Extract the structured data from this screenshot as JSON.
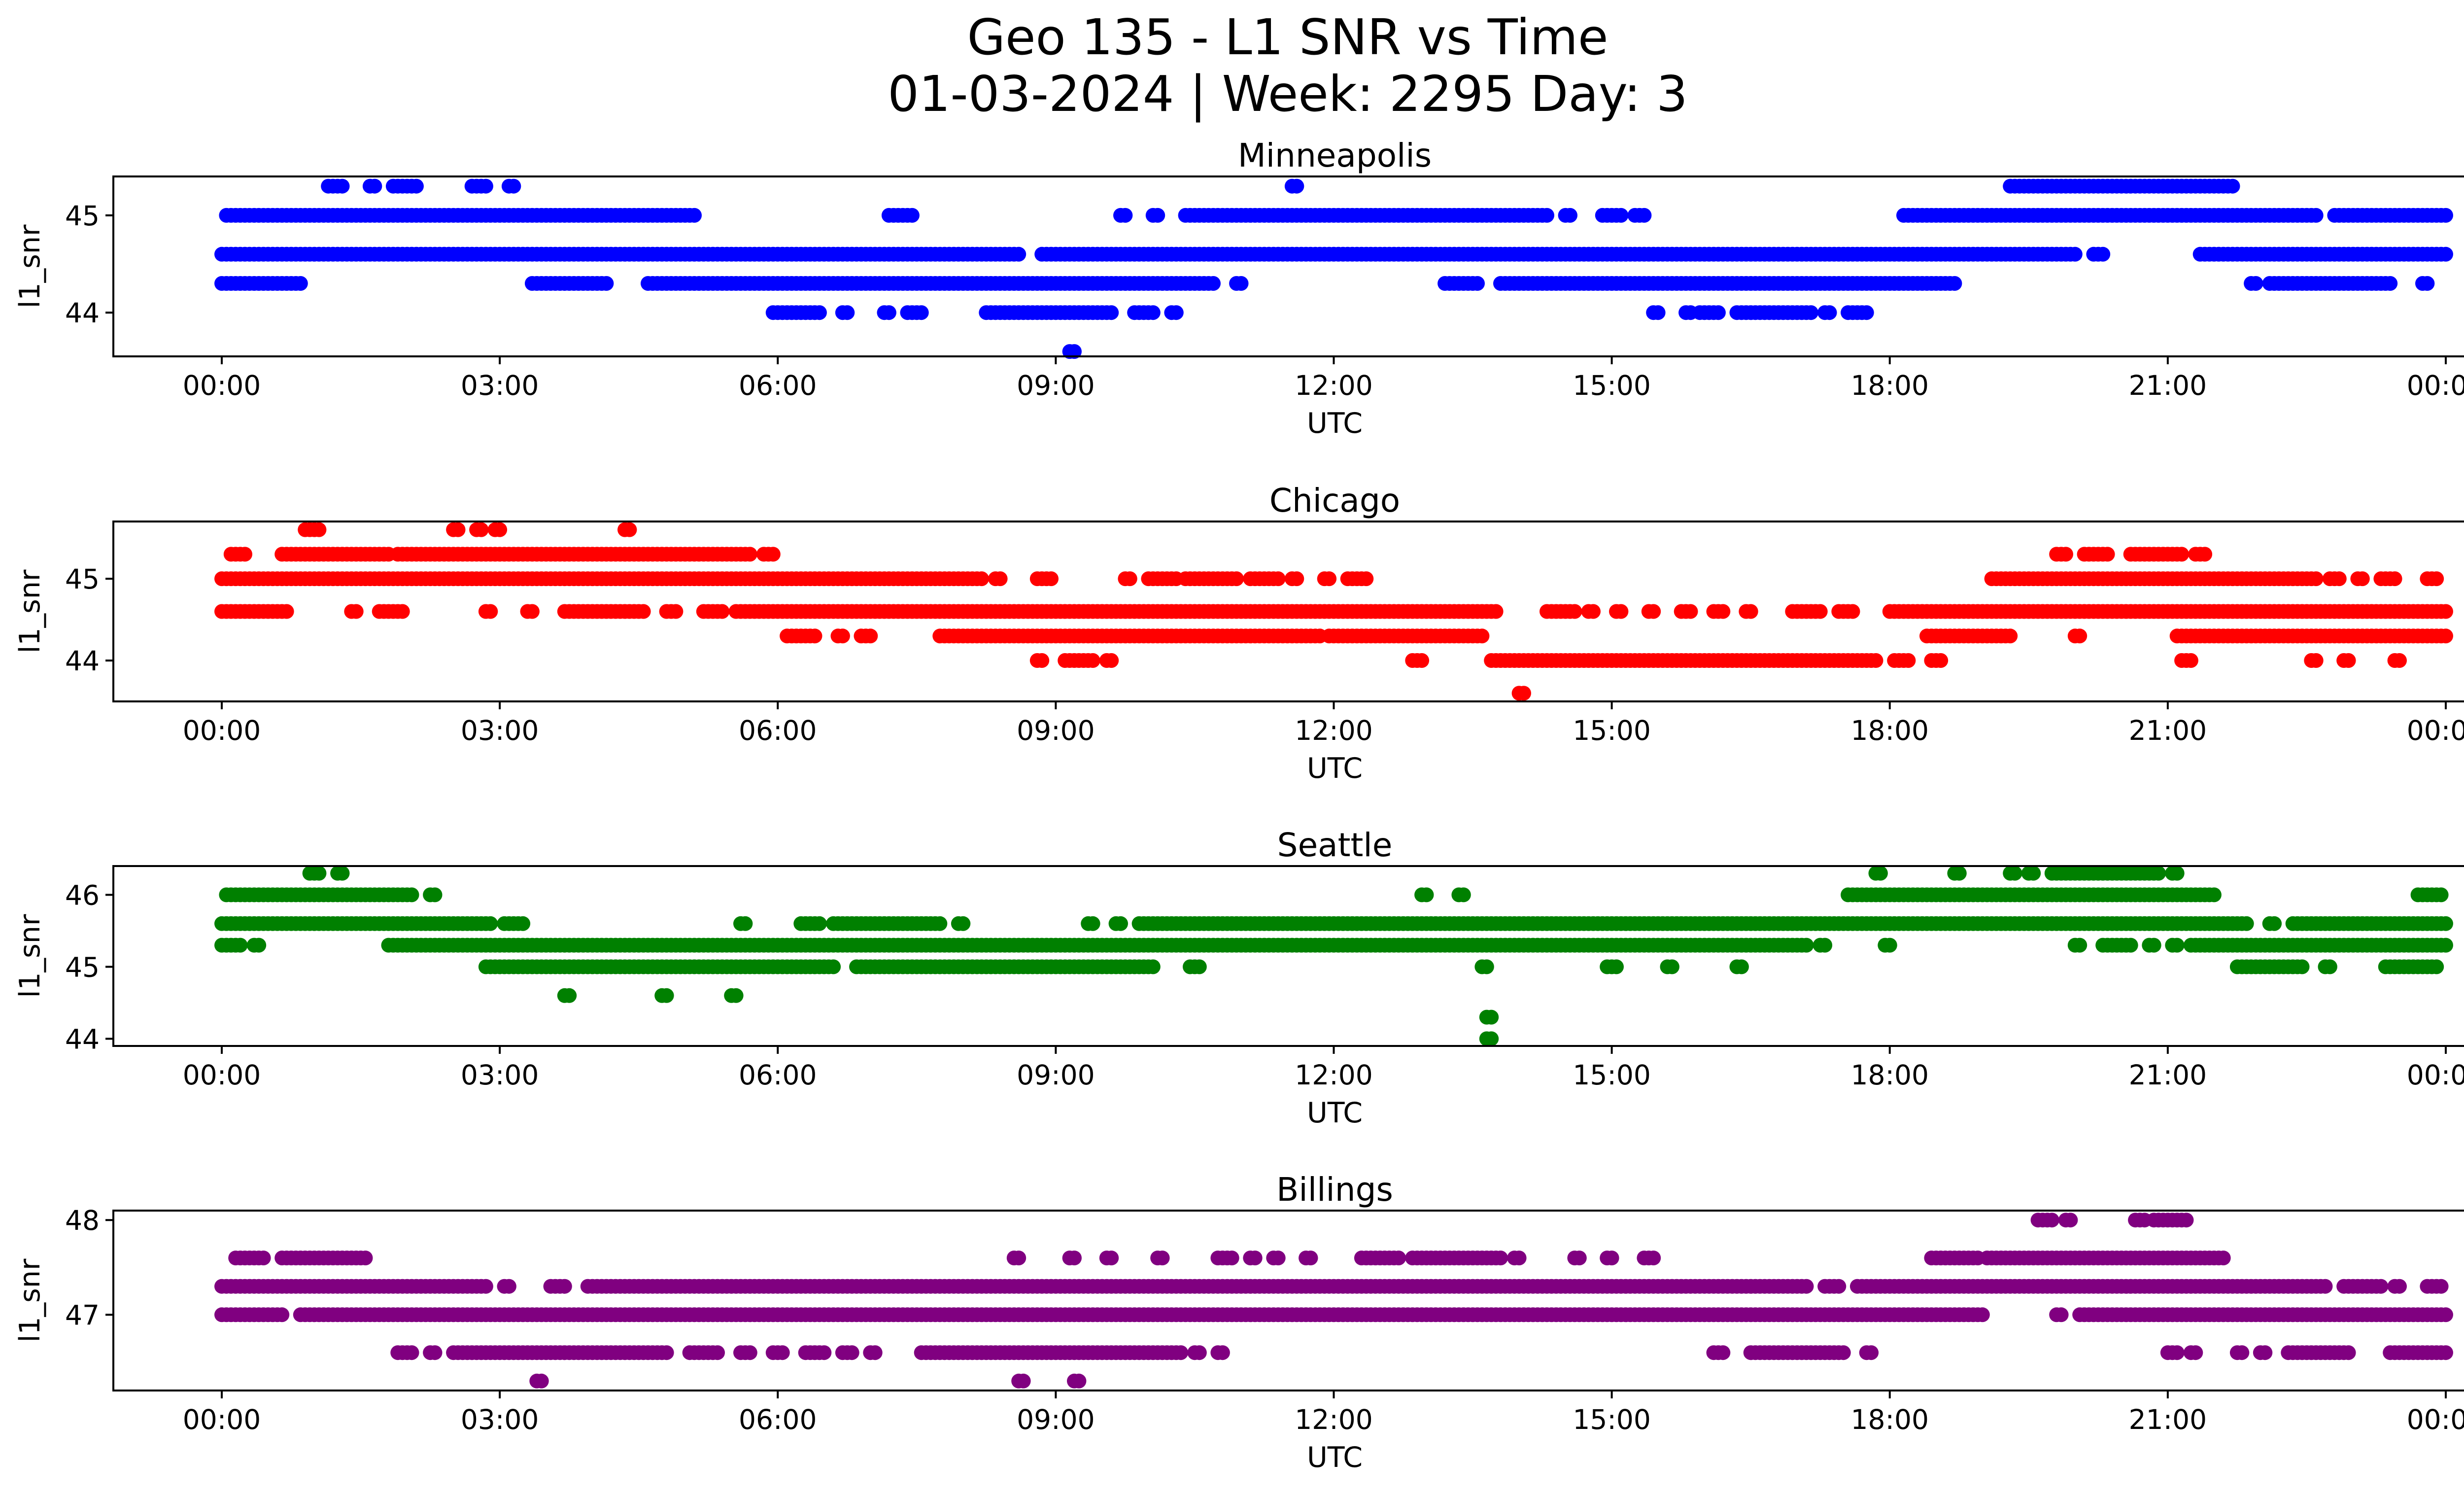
{
  "title_line1": "Geo 135 - L1 SNR vs Time",
  "title_line2": "01-03-2024 | Week: 2295 Day: 3",
  "chart_data": [
    {
      "type": "scatter",
      "title": "Minneapolis",
      "xlabel": "UTC",
      "ylabel": "l1_snr",
      "color": "#0000ff",
      "xlim": [
        "00:00",
        "24:00"
      ],
      "ylim": [
        43.55,
        45.4
      ],
      "xtick_labels": [
        "00:00",
        "03:00",
        "06:00",
        "09:00",
        "12:00",
        "15:00",
        "18:00",
        "21:00",
        "00:00"
      ],
      "yticks": [
        44,
        45
      ],
      "grid": false,
      "series": [
        {
          "y": 45.3,
          "segments": [
            [
              1.15,
              1.3
            ],
            [
              1.6,
              1.65
            ],
            [
              1.85,
              2.1
            ],
            [
              2.7,
              2.85
            ],
            [
              3.1,
              3.15
            ],
            [
              11.55,
              11.6
            ],
            [
              19.3,
              21.7
            ]
          ]
        },
        {
          "y": 45.0,
          "segments": [
            [
              0.05,
              5.1
            ],
            [
              7.2,
              7.45
            ],
            [
              9.7,
              9.75
            ],
            [
              10.05,
              10.1
            ],
            [
              10.4,
              14.3
            ],
            [
              14.5,
              14.55
            ],
            [
              14.9,
              15.1
            ],
            [
              15.25,
              15.35
            ],
            [
              18.15,
              22.6
            ],
            [
              22.8,
              24.0
            ]
          ]
        },
        {
          "y": 44.6,
          "segments": [
            [
              0.0,
              8.6
            ],
            [
              8.85,
              20.0
            ],
            [
              20.2,
              20.3
            ],
            [
              21.35,
              24.0
            ]
          ]
        },
        {
          "y": 44.3,
          "segments": [
            [
              0.0,
              0.85
            ],
            [
              3.35,
              4.15
            ],
            [
              4.6,
              10.7
            ],
            [
              10.95,
              11.0
            ],
            [
              13.2,
              13.55
            ],
            [
              13.8,
              18.7
            ],
            [
              21.9,
              21.95
            ],
            [
              22.1,
              23.4
            ],
            [
              23.75,
              23.8
            ]
          ]
        },
        {
          "y": 44.0,
          "segments": [
            [
              5.95,
              6.45
            ],
            [
              6.7,
              6.75
            ],
            [
              7.15,
              7.2
            ],
            [
              7.4,
              7.55
            ],
            [
              8.25,
              9.6
            ],
            [
              9.85,
              10.05
            ],
            [
              10.25,
              10.3
            ],
            [
              15.45,
              15.5
            ],
            [
              15.8,
              15.85
            ],
            [
              15.95,
              16.15
            ],
            [
              16.35,
              17.15
            ],
            [
              17.3,
              17.35
            ],
            [
              17.55,
              17.75
            ]
          ]
        },
        {
          "y": 43.6,
          "segments": [
            [
              9.15,
              9.2
            ]
          ]
        }
      ]
    },
    {
      "type": "scatter",
      "title": "Chicago",
      "xlabel": "UTC",
      "ylabel": "l1_snr",
      "color": "#ff0000",
      "xlim": [
        "00:00",
        "24:00"
      ],
      "ylim": [
        43.5,
        45.7
      ],
      "xtick_labels": [
        "00:00",
        "03:00",
        "06:00",
        "09:00",
        "12:00",
        "15:00",
        "18:00",
        "21:00",
        "00:00"
      ],
      "yticks": [
        44,
        45
      ],
      "grid": false,
      "series": [
        {
          "y": 45.6,
          "segments": [
            [
              0.9,
              1.05
            ],
            [
              2.5,
              2.55
            ],
            [
              2.75,
              2.8
            ],
            [
              2.95,
              3.0
            ],
            [
              4.35,
              4.4
            ]
          ]
        },
        {
          "y": 45.3,
          "segments": [
            [
              0.1,
              0.25
            ],
            [
              0.65,
              1.8
            ],
            [
              1.9,
              5.7
            ],
            [
              5.85,
              5.95
            ],
            [
              19.8,
              19.9
            ],
            [
              20.1,
              20.35
            ],
            [
              20.6,
              21.15
            ],
            [
              21.3,
              21.4
            ]
          ]
        },
        {
          "y": 45.0,
          "segments": [
            [
              0.0,
              8.2
            ],
            [
              8.35,
              8.4
            ],
            [
              8.8,
              8.95
            ],
            [
              9.75,
              9.8
            ],
            [
              10.0,
              10.3
            ],
            [
              10.4,
              10.95
            ],
            [
              11.1,
              11.4
            ],
            [
              11.55,
              11.6
            ],
            [
              11.9,
              11.95
            ],
            [
              12.15,
              12.35
            ],
            [
              19.1,
              22.6
            ],
            [
              22.75,
              22.85
            ],
            [
              23.05,
              23.1
            ],
            [
              23.3,
              23.45
            ],
            [
              23.8,
              23.9
            ]
          ]
        },
        {
          "y": 44.6,
          "segments": [
            [
              0.0,
              0.7
            ],
            [
              1.4,
              1.45
            ],
            [
              1.7,
              1.95
            ],
            [
              2.85,
              2.9
            ],
            [
              3.3,
              3.35
            ],
            [
              3.7,
              4.55
            ],
            [
              4.8,
              4.9
            ],
            [
              5.2,
              5.4
            ],
            [
              5.55,
              13.75
            ],
            [
              14.3,
              14.6
            ],
            [
              14.75,
              14.8
            ],
            [
              15.05,
              15.1
            ],
            [
              15.4,
              15.45
            ],
            [
              15.75,
              15.85
            ],
            [
              16.1,
              16.2
            ],
            [
              16.45,
              16.5
            ],
            [
              16.95,
              17.25
            ],
            [
              17.45,
              17.6
            ],
            [
              18.0,
              24.0
            ]
          ]
        },
        {
          "y": 44.3,
          "segments": [
            [
              6.1,
              6.4
            ],
            [
              6.65,
              6.7
            ],
            [
              6.9,
              7.0
            ],
            [
              7.75,
              11.85
            ],
            [
              11.95,
              13.6
            ],
            [
              18.4,
              19.3
            ],
            [
              20.0,
              20.05
            ],
            [
              21.1,
              24.0
            ]
          ]
        },
        {
          "y": 44.0,
          "segments": [
            [
              8.8,
              8.85
            ],
            [
              9.1,
              9.4
            ],
            [
              9.55,
              9.6
            ],
            [
              12.85,
              12.95
            ],
            [
              13.7,
              17.85
            ],
            [
              18.05,
              18.2
            ],
            [
              18.45,
              18.55
            ],
            [
              21.15,
              21.25
            ],
            [
              22.55,
              22.6
            ],
            [
              22.9,
              22.95
            ],
            [
              23.45,
              23.5
            ]
          ]
        },
        {
          "y": 43.6,
          "segments": [
            [
              14.0,
              14.05
            ]
          ]
        }
      ]
    },
    {
      "type": "scatter",
      "title": "Seattle",
      "xlabel": "UTC",
      "ylabel": "l1_snr",
      "color": "#008000",
      "xlim": [
        "00:00",
        "24:00"
      ],
      "ylim": [
        43.9,
        46.4
      ],
      "xtick_labels": [
        "00:00",
        "03:00",
        "06:00",
        "09:00",
        "12:00",
        "15:00",
        "18:00",
        "21:00",
        "00:00"
      ],
      "yticks": [
        44,
        45,
        46
      ],
      "grid": false,
      "series": [
        {
          "y": 46.3,
          "segments": [
            [
              0.95,
              1.05
            ],
            [
              1.25,
              1.3
            ],
            [
              17.85,
              17.9
            ],
            [
              18.7,
              18.75
            ],
            [
              19.3,
              19.35
            ],
            [
              19.5,
              19.55
            ],
            [
              19.75,
              20.9
            ],
            [
              21.05,
              21.1
            ]
          ]
        },
        {
          "y": 46.0,
          "segments": [
            [
              0.05,
              2.05
            ],
            [
              2.25,
              2.3
            ],
            [
              12.95,
              13.0
            ],
            [
              13.35,
              13.4
            ],
            [
              17.55,
              21.5
            ],
            [
              23.7,
              23.95
            ]
          ]
        },
        {
          "y": 45.6,
          "segments": [
            [
              0.0,
              2.9
            ],
            [
              3.05,
              3.25
            ],
            [
              5.6,
              5.65
            ],
            [
              6.25,
              6.45
            ],
            [
              6.6,
              7.75
            ],
            [
              7.95,
              8.0
            ],
            [
              9.35,
              9.4
            ],
            [
              9.65,
              9.7
            ],
            [
              9.9,
              21.85
            ],
            [
              22.1,
              22.15
            ],
            [
              22.35,
              24.0
            ]
          ]
        },
        {
          "y": 45.3,
          "segments": [
            [
              0.0,
              0.2
            ],
            [
              0.35,
              0.4
            ],
            [
              1.8,
              17.1
            ],
            [
              17.25,
              17.3
            ],
            [
              17.95,
              18.0
            ],
            [
              20.0,
              20.05
            ],
            [
              20.3,
              20.6
            ],
            [
              20.8,
              20.85
            ],
            [
              21.05,
              21.1
            ],
            [
              21.25,
              24.0
            ]
          ]
        },
        {
          "y": 45.0,
          "segments": [
            [
              2.85,
              6.6
            ],
            [
              6.85,
              10.05
            ],
            [
              10.45,
              10.55
            ],
            [
              13.6,
              13.65
            ],
            [
              14.95,
              15.05
            ],
            [
              15.6,
              15.65
            ],
            [
              16.35,
              16.4
            ],
            [
              21.75,
              22.45
            ],
            [
              22.7,
              22.75
            ],
            [
              23.35,
              23.9
            ]
          ]
        },
        {
          "y": 44.6,
          "segments": [
            [
              3.7,
              3.75
            ],
            [
              4.75,
              4.8
            ],
            [
              5.5,
              5.55
            ]
          ]
        },
        {
          "y": 44.3,
          "segments": [
            [
              13.65,
              13.7
            ]
          ]
        },
        {
          "y": 44.0,
          "segments": [
            [
              13.65,
              13.7
            ]
          ]
        }
      ]
    },
    {
      "type": "scatter",
      "title": "Billings",
      "xlabel": "UTC",
      "ylabel": "l1_snr",
      "color": "#800080",
      "xlim": [
        "00:00",
        "24:00"
      ],
      "ylim": [
        46.2,
        48.1
      ],
      "xtick_labels": [
        "00:00",
        "03:00",
        "06:00",
        "09:00",
        "12:00",
        "15:00",
        "18:00",
        "21:00",
        "00:00"
      ],
      "yticks": [
        47,
        48
      ],
      "grid": false,
      "series": [
        {
          "y": 48.0,
          "segments": [
            [
              19.6,
              19.75
            ],
            [
              19.9,
              19.95
            ],
            [
              20.65,
              20.75
            ],
            [
              20.85,
              21.2
            ]
          ]
        },
        {
          "y": 47.6,
          "segments": [
            [
              0.15,
              0.45
            ],
            [
              0.65,
              1.0
            ],
            [
              1.05,
              1.55
            ],
            [
              8.55,
              8.6
            ],
            [
              9.15,
              9.2
            ],
            [
              9.55,
              9.6
            ],
            [
              10.1,
              10.15
            ],
            [
              10.75,
              10.9
            ],
            [
              11.1,
              11.15
            ],
            [
              11.35,
              11.4
            ],
            [
              11.7,
              11.75
            ],
            [
              12.3,
              12.7
            ],
            [
              12.85,
              13.8
            ],
            [
              13.95,
              14.0
            ],
            [
              14.6,
              14.65
            ],
            [
              14.95,
              15.0
            ],
            [
              15.35,
              15.45
            ],
            [
              18.45,
              18.95
            ],
            [
              19.05,
              21.6
            ]
          ]
        },
        {
          "y": 47.3,
          "segments": [
            [
              0.0,
              2.85
            ],
            [
              3.05,
              3.1
            ],
            [
              3.55,
              3.7
            ],
            [
              3.95,
              17.1
            ],
            [
              17.3,
              17.45
            ],
            [
              17.65,
              22.7
            ],
            [
              22.9,
              23.3
            ],
            [
              23.45,
              23.5
            ],
            [
              23.8,
              23.95
            ]
          ]
        },
        {
          "y": 47.0,
          "segments": [
            [
              0.0,
              0.65
            ],
            [
              0.85,
              19.0
            ],
            [
              19.8,
              19.85
            ],
            [
              20.05,
              24.0
            ]
          ]
        },
        {
          "y": 46.6,
          "segments": [
            [
              1.9,
              2.05
            ],
            [
              2.25,
              2.3
            ],
            [
              2.5,
              4.8
            ],
            [
              5.05,
              5.35
            ],
            [
              5.6,
              5.7
            ],
            [
              5.95,
              6.05
            ],
            [
              6.3,
              6.5
            ],
            [
              6.7,
              6.8
            ],
            [
              7.0,
              7.05
            ],
            [
              7.55,
              10.35
            ],
            [
              10.5,
              10.55
            ],
            [
              10.75,
              10.8
            ],
            [
              16.1,
              16.2
            ],
            [
              16.5,
              17.5
            ],
            [
              17.75,
              17.8
            ],
            [
              21.0,
              21.1
            ],
            [
              21.25,
              21.3
            ],
            [
              21.75,
              21.8
            ],
            [
              22.0,
              22.05
            ],
            [
              22.3,
              22.95
            ],
            [
              23.4,
              24.0
            ]
          ]
        },
        {
          "y": 46.3,
          "segments": [
            [
              3.4,
              3.45
            ],
            [
              8.6,
              8.65
            ],
            [
              9.2,
              9.25
            ]
          ]
        }
      ]
    }
  ]
}
